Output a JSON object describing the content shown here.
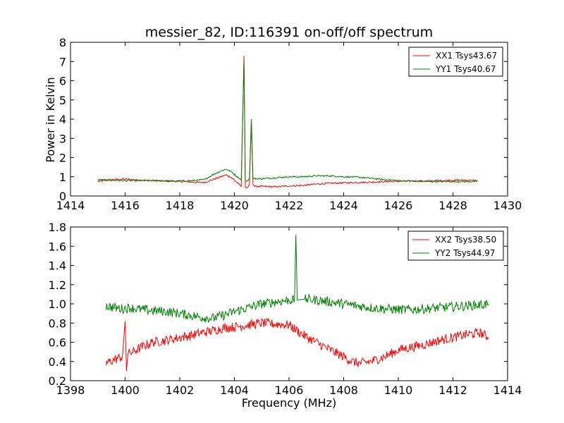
{
  "title": "messier_82, ID:116391 on-off/off spectrum",
  "colors": {
    "xx": "#ff0000",
    "yy": "#008000"
  },
  "chart_data": [
    {
      "type": "line",
      "title": "messier_82, ID:116391 on-off/off spectrum",
      "xlabel": "",
      "ylabel": "Power in Kelvin",
      "xlim": [
        1414,
        1430
      ],
      "ylim": [
        0,
        8
      ],
      "xticks": [
        "1414",
        "1416",
        "1418",
        "1420",
        "1422",
        "1424",
        "1426",
        "1428",
        "1430"
      ],
      "yticks": [
        "0",
        "1",
        "2",
        "3",
        "4",
        "5",
        "6",
        "7",
        "8"
      ],
      "legend_position": "top-right",
      "grid": false,
      "series": [
        {
          "name": "XX1 Tsys43.67",
          "color": "#ff0000",
          "x": [
            1415.0,
            1415.5,
            1416.0,
            1416.5,
            1417.0,
            1417.5,
            1418.0,
            1418.5,
            1418.9,
            1419.2,
            1419.5,
            1419.7,
            1419.9,
            1420.1,
            1420.25,
            1420.35,
            1420.4,
            1420.45,
            1420.55,
            1420.62,
            1420.68,
            1420.75,
            1421.0,
            1421.5,
            1422.0,
            1422.5,
            1423.0,
            1423.5,
            1424.0,
            1424.5,
            1425.0,
            1425.5,
            1426.0,
            1426.5,
            1427.0,
            1427.5,
            1428.0,
            1428.5,
            1428.9
          ],
          "y": [
            0.75,
            0.85,
            0.88,
            0.83,
            0.8,
            0.78,
            0.76,
            0.72,
            0.7,
            0.85,
            1.0,
            1.1,
            0.95,
            0.7,
            0.5,
            7.3,
            0.45,
            0.4,
            0.6,
            3.9,
            0.6,
            0.5,
            0.5,
            0.48,
            0.52,
            0.55,
            0.62,
            0.66,
            0.68,
            0.7,
            0.72,
            0.75,
            0.76,
            0.78,
            0.78,
            0.8,
            0.82,
            0.82,
            0.8
          ]
        },
        {
          "name": "YY1 Tsys40.67",
          "color": "#008000",
          "x": [
            1415.0,
            1415.5,
            1416.0,
            1416.5,
            1417.0,
            1417.5,
            1418.0,
            1418.5,
            1418.9,
            1419.2,
            1419.5,
            1419.7,
            1419.9,
            1420.1,
            1420.25,
            1420.35,
            1420.4,
            1420.45,
            1420.55,
            1420.62,
            1420.68,
            1420.75,
            1421.0,
            1421.5,
            1422.0,
            1422.5,
            1423.0,
            1423.5,
            1424.0,
            1424.5,
            1425.0,
            1425.5,
            1426.0,
            1426.5,
            1427.0,
            1427.5,
            1428.0,
            1428.5,
            1428.9
          ],
          "y": [
            0.85,
            0.82,
            0.8,
            0.8,
            0.8,
            0.78,
            0.78,
            0.8,
            0.85,
            1.1,
            1.3,
            1.4,
            1.25,
            1.0,
            0.85,
            7.0,
            0.8,
            0.75,
            0.9,
            4.0,
            0.9,
            0.9,
            0.9,
            0.95,
            1.0,
            1.0,
            1.05,
            1.05,
            1.0,
            0.98,
            0.92,
            0.85,
            0.8,
            0.78,
            0.75,
            0.75,
            0.75,
            0.75,
            0.75
          ]
        }
      ]
    },
    {
      "type": "line",
      "title": "",
      "xlabel": "Frequency (MHz)",
      "ylabel": "",
      "xlim": [
        1398,
        1414
      ],
      "ylim": [
        0.2,
        1.8
      ],
      "xticks": [
        "1398",
        "1400",
        "1402",
        "1404",
        "1406",
        "1408",
        "1410",
        "1412",
        "1414"
      ],
      "yticks": [
        "0.2",
        "0.4",
        "0.6",
        "0.8",
        "1.0",
        "1.2",
        "1.4",
        "1.6",
        "1.8"
      ],
      "legend_position": "top-right",
      "grid": false,
      "series": [
        {
          "name": "XX2 Tsys38.50",
          "color": "#ff0000",
          "x": [
            1399.3,
            1399.6,
            1399.9,
            1400.0,
            1400.05,
            1400.1,
            1400.3,
            1400.6,
            1401.0,
            1401.5,
            1402.0,
            1402.4,
            1402.8,
            1403.2,
            1403.6,
            1404.0,
            1404.5,
            1405.0,
            1405.5,
            1406.0,
            1406.3,
            1406.6,
            1407.0,
            1407.5,
            1408.0,
            1408.3,
            1408.6,
            1409.0,
            1409.5,
            1410.0,
            1410.5,
            1411.0,
            1411.5,
            1412.0,
            1412.5,
            1413.0,
            1413.3
          ],
          "y": [
            0.38,
            0.42,
            0.45,
            0.82,
            0.3,
            0.48,
            0.5,
            0.55,
            0.6,
            0.62,
            0.65,
            0.67,
            0.7,
            0.72,
            0.75,
            0.76,
            0.78,
            0.8,
            0.79,
            0.78,
            0.72,
            0.66,
            0.6,
            0.52,
            0.45,
            0.4,
            0.38,
            0.4,
            0.45,
            0.52,
            0.55,
            0.58,
            0.62,
            0.65,
            0.68,
            0.7,
            0.65
          ]
        },
        {
          "name": "YY2 Tsys44.97",
          "color": "#008000",
          "x": [
            1399.3,
            1399.6,
            1399.9,
            1400.2,
            1400.6,
            1401.0,
            1401.5,
            1402.0,
            1402.4,
            1402.8,
            1403.2,
            1403.6,
            1404.0,
            1404.5,
            1405.0,
            1405.5,
            1406.0,
            1406.2,
            1406.25,
            1406.3,
            1406.6,
            1407.0,
            1407.5,
            1408.0,
            1408.5,
            1409.0,
            1409.5,
            1410.0,
            1410.5,
            1411.0,
            1411.5,
            1412.0,
            1412.5,
            1413.0,
            1413.3
          ],
          "y": [
            0.98,
            0.96,
            0.95,
            0.96,
            0.94,
            0.93,
            0.92,
            0.9,
            0.88,
            0.86,
            0.85,
            0.88,
            0.92,
            0.96,
            1.0,
            1.02,
            1.04,
            1.04,
            1.72,
            1.04,
            1.05,
            1.04,
            1.02,
            1.0,
            0.98,
            0.96,
            0.95,
            0.94,
            0.94,
            0.95,
            0.96,
            0.97,
            0.98,
            0.99,
            1.0
          ]
        }
      ]
    }
  ]
}
